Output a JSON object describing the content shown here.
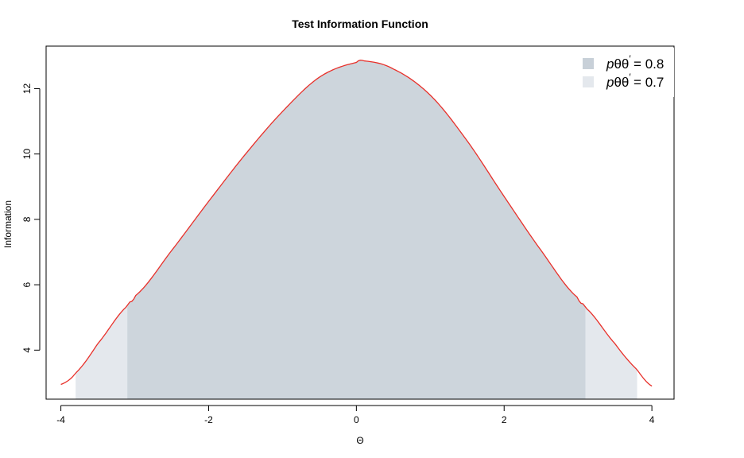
{
  "chart_data": {
    "type": "area",
    "title": "Test Information Function",
    "xlabel": "Θ",
    "ylabel": "Information",
    "xlim": [
      -4.2,
      4.3
    ],
    "ylim": [
      2.5,
      13.3
    ],
    "x_ticks": [
      "-4",
      "-2",
      "0",
      "2",
      "4"
    ],
    "y_ticks": [
      "4",
      "6",
      "8",
      "10",
      "12"
    ],
    "x_tick_values": [
      -4,
      -2,
      0,
      2,
      4
    ],
    "y_tick_values": [
      4,
      6,
      8,
      10,
      12
    ],
    "curve": {
      "color": "#e8302a",
      "x": [
        -4,
        -3.8,
        -3.5,
        -3.1,
        -3,
        -2.5,
        -2,
        -1.5,
        -1,
        -0.5,
        0,
        0.1,
        0.5,
        1,
        1.5,
        2,
        2.5,
        3,
        3.1,
        3.5,
        3.8,
        4
      ],
      "y": [
        2.95,
        3.3,
        4.2,
        5.35,
        5.65,
        7.05,
        8.55,
        10.0,
        11.3,
        12.35,
        12.8,
        12.85,
        12.6,
        11.8,
        10.4,
        8.7,
        7.05,
        5.6,
        5.3,
        4.2,
        3.4,
        2.9
      ]
    },
    "series": [
      {
        "name": "pθθ′ = 0.7",
        "x_range": [
          -3.8,
          3.8
        ],
        "color": "#e4e8ed"
      },
      {
        "name": "pθθ′ = 0.8",
        "x_range": [
          -3.1,
          3.1
        ],
        "color": "#cdd5dc"
      }
    ],
    "legend": {
      "position": "top-right",
      "entries": [
        {
          "prefix": "p",
          "theta": "θθ",
          "value": "= 0.8",
          "color": "#c8d0d8"
        },
        {
          "prefix": "p",
          "theta": "θθ",
          "value": "= 0.7",
          "color": "#e4e8ed"
        }
      ]
    },
    "grid": false
  }
}
